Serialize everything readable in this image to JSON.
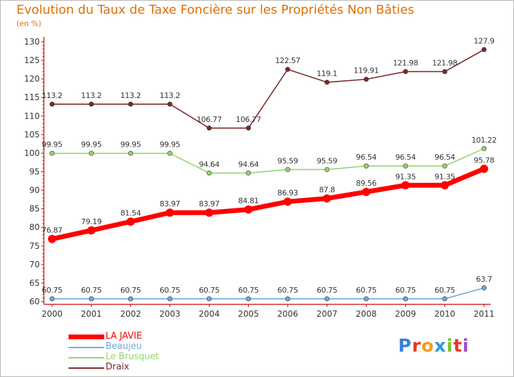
{
  "header": {
    "title": "Evolution du Taux de Taxe Foncière sur les Propriétés Non Bâties",
    "unit": "(en %)"
  },
  "brand": {
    "letters": [
      "P",
      "r",
      "o",
      "x",
      "i",
      "t",
      "i"
    ],
    "colors": [
      "#3a7fd8",
      "#e8362a",
      "#f29c1f",
      "#2a9ad8",
      "#7cbf2a",
      "#e8362a",
      "#9a4fc2"
    ]
  },
  "chart_data": {
    "type": "line",
    "x": [
      "2000",
      "2001",
      "2002",
      "2003",
      "2004",
      "2005",
      "2006",
      "2007",
      "2008",
      "2009",
      "2010",
      "2011"
    ],
    "ylim": [
      60,
      130
    ],
    "yticks": [
      60,
      65,
      70,
      75,
      80,
      85,
      90,
      95,
      100,
      105,
      110,
      115,
      120,
      125,
      130
    ],
    "grid": false,
    "legend": "bottom-left",
    "series": [
      {
        "name": "LA JAVIE",
        "color": "#ff0000",
        "width": "thick",
        "values": [
          76.87,
          79.19,
          81.54,
          83.97,
          83.97,
          84.81,
          86.93,
          87.8,
          89.56,
          91.35,
          91.35,
          95.78
        ],
        "labels": [
          "76.87",
          "79.19",
          "81.54",
          "83.97",
          "83.97",
          "84.81",
          "86.93",
          "87.8",
          "89.56",
          "91.35",
          "91.35",
          "95.78"
        ]
      },
      {
        "name": "Beaujeu",
        "color": "#6fa8dc",
        "width": "thin",
        "values": [
          60.75,
          60.75,
          60.75,
          60.75,
          60.75,
          60.75,
          60.75,
          60.75,
          60.75,
          60.75,
          60.75,
          63.7
        ],
        "labels": [
          "60.75",
          "60.75",
          "60.75",
          "60.75",
          "60.75",
          "60.75",
          "60.75",
          "60.75",
          "60.75",
          "60.75",
          "60.75",
          "63.7"
        ]
      },
      {
        "name": "Le Brusquet",
        "color": "#93d56c",
        "width": "thin",
        "values": [
          99.95,
          99.95,
          99.95,
          99.95,
          94.64,
          94.64,
          95.59,
          95.59,
          96.54,
          96.54,
          96.54,
          101.22
        ],
        "labels": [
          "99.95",
          "99.95",
          "99.95",
          "99.95",
          "94.64",
          "94.64",
          "95.59",
          "95.59",
          "96.54",
          "96.54",
          "96.54",
          "101.22"
        ]
      },
      {
        "name": "Draix",
        "color": "#7a2a2a",
        "width": "thin",
        "values": [
          113.2,
          113.2,
          113.2,
          113.2,
          106.77,
          106.77,
          122.57,
          119.1,
          119.91,
          121.98,
          121.98,
          127.9
        ],
        "labels": [
          "113.2",
          "113.2",
          "113.2",
          "113.2",
          "106.77",
          "106.77",
          "122.57",
          "119.1",
          "119.91",
          "121.98",
          "121.98",
          "127.9"
        ]
      }
    ]
  }
}
